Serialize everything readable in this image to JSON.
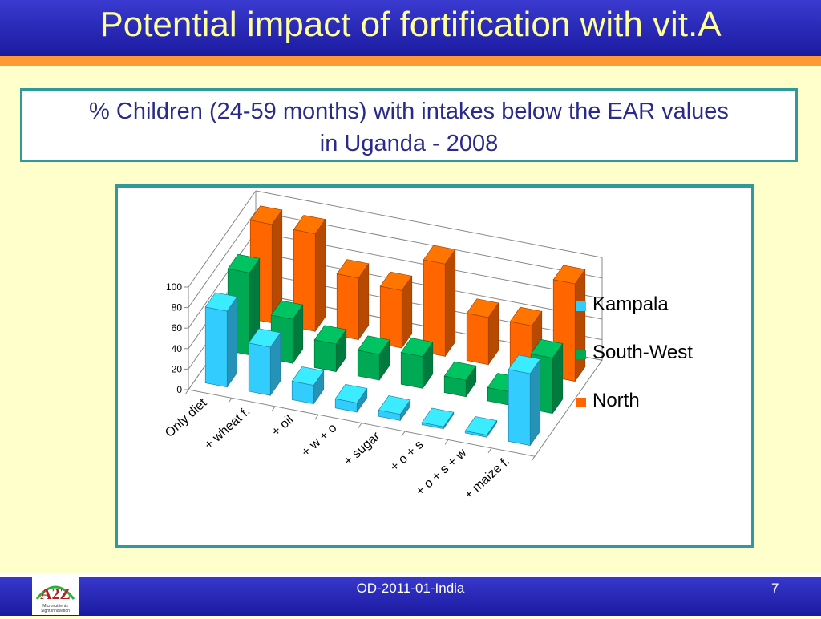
{
  "slide": {
    "title": "Potential impact of fortification with vit.A",
    "subtitle_line1": "% Children (24-59 months) with intakes below the EAR values",
    "subtitle_line2": "in Uganda - 2008"
  },
  "footer": {
    "doc_id": "OD-2011-01-India",
    "page_number": "7",
    "logo_text": "A2Z",
    "logo_tagline": "Micronutrients Sight Innovation"
  },
  "colors": {
    "header_blue": "#2626b8",
    "accent_orange": "#ff9933",
    "title_yellow": "#ffff99",
    "frame_teal": "#2e9a9a",
    "background": "#ffffcc"
  },
  "chart_data": {
    "type": "bar",
    "subtype": "3d-clustered-column",
    "categories": [
      "Only diet",
      "+ wheat f.",
      "+ oil",
      "+ w + o",
      "+ sugar",
      "+ o + s",
      "+ o + s + w",
      "+ maize f."
    ],
    "series": [
      {
        "name": "Kampala",
        "color": "#33ccff",
        "values": [
          74,
          47,
          18,
          9,
          6,
          2,
          2,
          70
        ]
      },
      {
        "name": "South-West",
        "color": "#00aa55",
        "values": [
          80,
          43,
          27,
          25,
          31,
          16,
          13,
          54
        ]
      },
      {
        "name": "North",
        "color": "#ff6600",
        "values": [
          96,
          95,
          60,
          56,
          90,
          46,
          46,
          95
        ]
      }
    ],
    "y_ticks": [
      "0",
      "20",
      "40",
      "60",
      "80",
      "100"
    ],
    "ylim": [
      0,
      100
    ],
    "grid": true,
    "legend": "right"
  }
}
